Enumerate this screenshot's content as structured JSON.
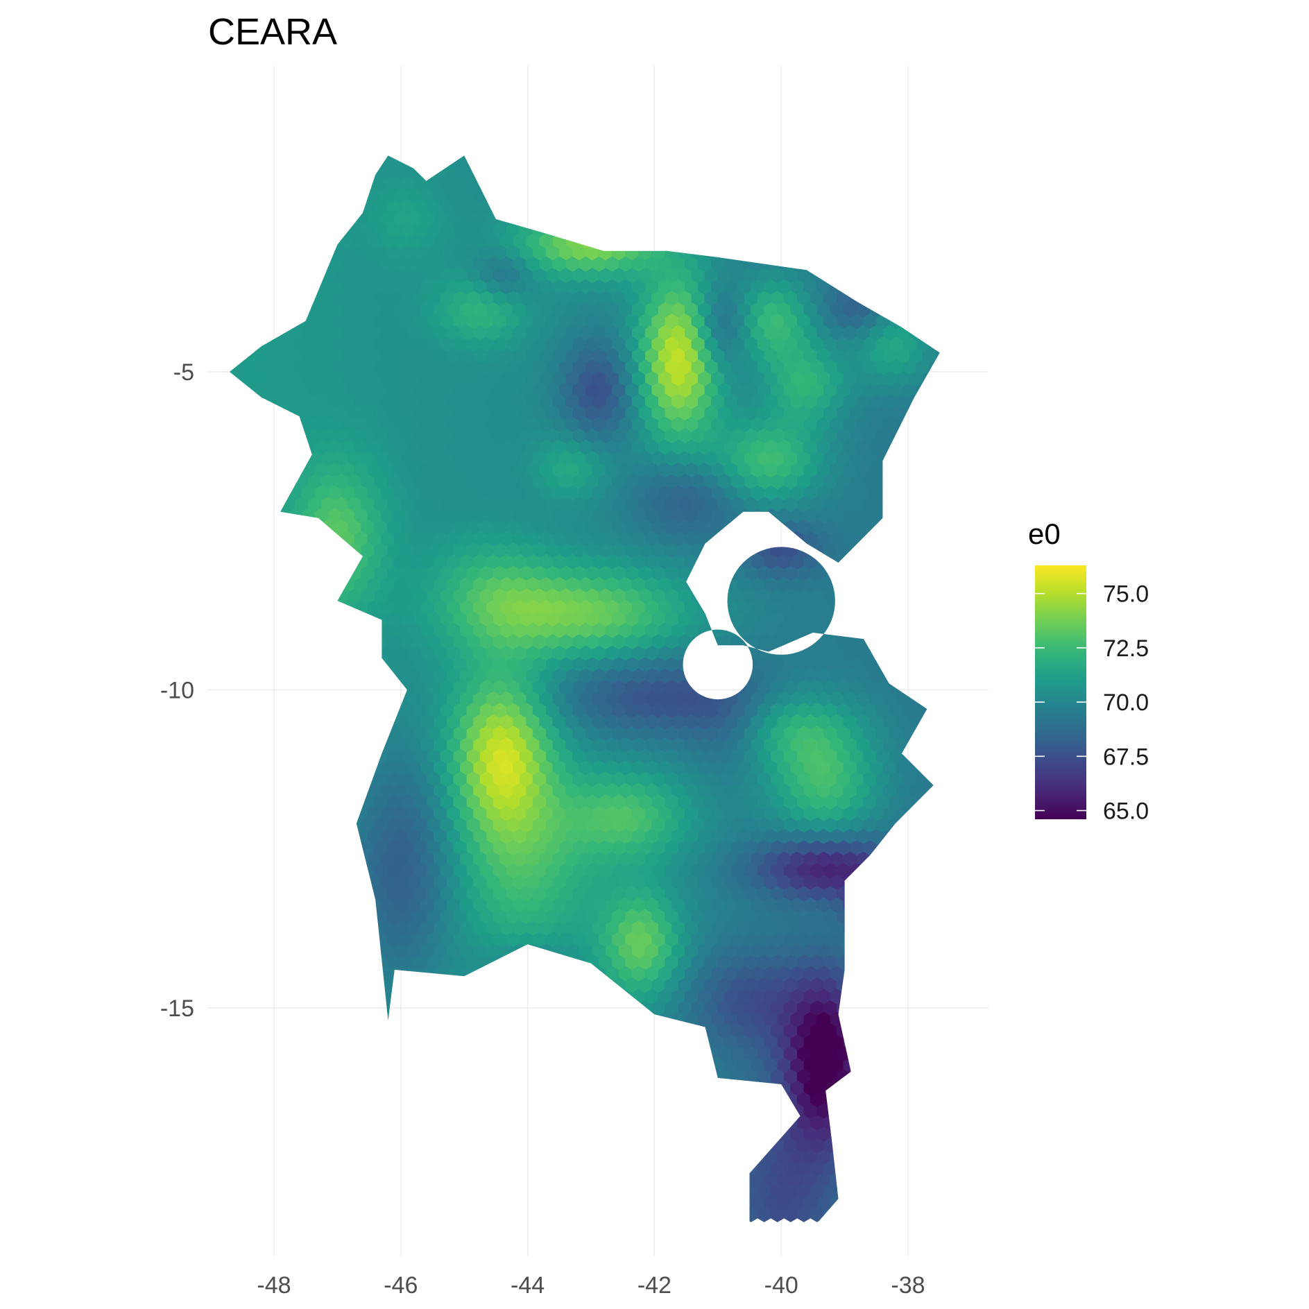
{
  "title": "CEARA",
  "axes": {
    "x_ticks": [
      {
        "value": -48,
        "label": "-48"
      },
      {
        "value": -46,
        "label": "-46"
      },
      {
        "value": -44,
        "label": "-44"
      },
      {
        "value": -42,
        "label": "-42"
      },
      {
        "value": -40,
        "label": "-40"
      },
      {
        "value": -38,
        "label": "-38"
      }
    ],
    "y_ticks": [
      {
        "value": -5,
        "label": "-5"
      },
      {
        "value": -10,
        "label": "-10"
      },
      {
        "value": -15,
        "label": "-15"
      }
    ],
    "xlim": [
      -49.0,
      -37.3
    ],
    "ylim": [
      -19.7,
      0.5
    ]
  },
  "legend": {
    "title": "e0",
    "min": 64.6,
    "max": 76.3,
    "breaks": [
      {
        "value": 75.0,
        "label": "75.0"
      },
      {
        "value": 72.5,
        "label": "72.5"
      },
      {
        "value": 70.0,
        "label": "70.0"
      },
      {
        "value": 67.5,
        "label": "67.5"
      },
      {
        "value": 65.0,
        "label": "65.0"
      }
    ],
    "palette": "viridis"
  },
  "chart_data": {
    "type": "heatmap",
    "title": "CEARA",
    "xlabel": "",
    "ylabel": "",
    "variable": "e0",
    "value_range": [
      64.6,
      76.3
    ],
    "colorscale": [
      "#440154",
      "#482878",
      "#3e4989",
      "#31688e",
      "#26828e",
      "#1f9e89",
      "#35b779",
      "#6ece58",
      "#b5de2b",
      "#fde725"
    ],
    "grid": true,
    "legend_position": "right",
    "region_outline": [
      [
        -46.2,
        -1.6
      ],
      [
        -45.8,
        -1.8
      ],
      [
        -45.6,
        -2.0
      ],
      [
        -45.0,
        -1.6
      ],
      [
        -44.5,
        -2.6
      ],
      [
        -43.8,
        -2.8
      ],
      [
        -42.8,
        -3.1
      ],
      [
        -41.8,
        -3.1
      ],
      [
        -41.0,
        -3.2
      ],
      [
        -39.6,
        -3.4
      ],
      [
        -38.8,
        -3.9
      ],
      [
        -38.1,
        -4.3
      ],
      [
        -37.5,
        -4.7
      ],
      [
        -37.9,
        -5.4
      ],
      [
        -38.4,
        -6.4
      ],
      [
        -38.4,
        -7.3
      ],
      [
        -39.1,
        -8.0
      ],
      [
        -39.6,
        -7.7
      ],
      [
        -40.2,
        -7.2
      ],
      [
        -40.6,
        -7.2
      ],
      [
        -41.2,
        -7.7
      ],
      [
        -41.5,
        -8.3
      ],
      [
        -41.2,
        -8.8
      ],
      [
        -41.0,
        -9.3
      ],
      [
        -40.6,
        -9.3
      ],
      [
        -40.2,
        -9.4
      ],
      [
        -39.5,
        -9.1
      ],
      [
        -38.7,
        -9.2
      ],
      [
        -38.3,
        -9.9
      ],
      [
        -37.7,
        -10.3
      ],
      [
        -38.1,
        -11.0
      ],
      [
        -37.6,
        -11.5
      ],
      [
        -38.2,
        -12.1
      ],
      [
        -38.6,
        -12.6
      ],
      [
        -39.0,
        -13.0
      ],
      [
        -39.0,
        -14.4
      ],
      [
        -39.1,
        -15.1
      ],
      [
        -38.9,
        -16.0
      ],
      [
        -39.3,
        -16.3
      ],
      [
        -39.2,
        -17.1
      ],
      [
        -39.1,
        -18.0
      ],
      [
        -39.8,
        -18.8
      ],
      [
        -40.5,
        -18.4
      ],
      [
        -40.5,
        -17.6
      ],
      [
        -39.7,
        -16.7
      ],
      [
        -40.0,
        -16.2
      ],
      [
        -41.0,
        -16.1
      ],
      [
        -41.2,
        -15.3
      ],
      [
        -42.0,
        -15.1
      ],
      [
        -43.0,
        -14.3
      ],
      [
        -44.0,
        -14.0
      ],
      [
        -45.0,
        -14.5
      ],
      [
        -46.1,
        -14.4
      ],
      [
        -46.2,
        -15.2
      ],
      [
        -46.4,
        -13.3
      ],
      [
        -46.7,
        -12.1
      ],
      [
        -46.3,
        -11.0
      ],
      [
        -45.9,
        -10.0
      ],
      [
        -46.3,
        -9.5
      ],
      [
        -46.3,
        -8.9
      ],
      [
        -47.0,
        -8.6
      ],
      [
        -46.6,
        -7.9
      ],
      [
        -47.3,
        -7.3
      ],
      [
        -47.9,
        -7.2
      ],
      [
        -47.4,
        -6.3
      ],
      [
        -47.6,
        -5.7
      ],
      [
        -48.2,
        -5.4
      ],
      [
        -48.7,
        -5.0
      ],
      [
        -48.2,
        -4.6
      ],
      [
        -47.5,
        -4.2
      ],
      [
        -47.0,
        -3.0
      ],
      [
        -46.6,
        -2.5
      ],
      [
        -46.4,
        -1.9
      ]
    ],
    "holes": [
      {
        "center": [
          -40.0,
          -8.6
        ],
        "radius": 0.85
      },
      {
        "center": [
          -41.0,
          -9.6
        ],
        "radius": 0.55
      }
    ],
    "base_value": 70.1,
    "hotspots": [
      {
        "lon": -41.6,
        "lat": -4.8,
        "amp": 5.5,
        "sx": 0.45,
        "sy": 0.9
      },
      {
        "lon": -43.0,
        "lat": -3.0,
        "amp": 4.0,
        "sx": 0.8,
        "sy": 0.35
      },
      {
        "lon": -43.0,
        "lat": -8.8,
        "amp": 3.5,
        "sx": 1.1,
        "sy": 0.5
      },
      {
        "lon": -44.4,
        "lat": -11.0,
        "amp": 4.8,
        "sx": 0.55,
        "sy": 0.9
      },
      {
        "lon": -40.2,
        "lat": -6.4,
        "amp": 3.0,
        "sx": 0.6,
        "sy": 0.45
      },
      {
        "lon": -39.6,
        "lat": -5.2,
        "amp": 2.6,
        "sx": 0.45,
        "sy": 0.45
      },
      {
        "lon": -40.1,
        "lat": -4.2,
        "amp": 2.8,
        "sx": 0.4,
        "sy": 0.45
      },
      {
        "lon": -38.2,
        "lat": -4.6,
        "amp": 2.2,
        "sx": 0.45,
        "sy": 0.45
      },
      {
        "lon": -47.0,
        "lat": -7.6,
        "amp": 2.6,
        "sx": 0.5,
        "sy": 0.8
      },
      {
        "lon": -39.3,
        "lat": -11.5,
        "amp": 3.0,
        "sx": 0.6,
        "sy": 0.6
      },
      {
        "lon": -39.9,
        "lat": -10.6,
        "amp": 2.4,
        "sx": 0.8,
        "sy": 0.45
      },
      {
        "lon": -42.2,
        "lat": -14.0,
        "amp": 3.5,
        "sx": 0.45,
        "sy": 0.6
      },
      {
        "lon": -42.4,
        "lat": -12.0,
        "amp": 2.8,
        "sx": 0.7,
        "sy": 0.5
      },
      {
        "lon": -44.0,
        "lat": -12.8,
        "amp": 2.3,
        "sx": 0.8,
        "sy": 1.1
      },
      {
        "lon": -44.7,
        "lat": -4.0,
        "amp": 2.0,
        "sx": 0.5,
        "sy": 0.4
      },
      {
        "lon": -43.3,
        "lat": -6.5,
        "amp": 1.6,
        "sx": 0.4,
        "sy": 0.35
      },
      {
        "lon": -44.5,
        "lat": -8.5,
        "amp": 2.0,
        "sx": 0.7,
        "sy": 0.6
      },
      {
        "lon": -45.9,
        "lat": -2.6,
        "amp": 0.8,
        "sx": 0.4,
        "sy": 0.4
      },
      {
        "lon": -42.9,
        "lat": -5.3,
        "amp": -2.6,
        "sx": 0.4,
        "sy": 0.55
      },
      {
        "lon": -44.4,
        "lat": -3.5,
        "amp": -1.8,
        "sx": 0.35,
        "sy": 0.3
      },
      {
        "lon": -41.5,
        "lat": -7.0,
        "amp": -1.8,
        "sx": 0.6,
        "sy": 0.45
      },
      {
        "lon": -40.0,
        "lat": -7.8,
        "amp": -2.2,
        "sx": 0.45,
        "sy": 0.3
      },
      {
        "lon": -41.0,
        "lat": -4.3,
        "amp": -2.2,
        "sx": 0.3,
        "sy": 0.45
      },
      {
        "lon": -38.8,
        "lat": -4.0,
        "amp": -1.5,
        "sx": 0.35,
        "sy": 0.3
      },
      {
        "lon": -42.0,
        "lat": -10.1,
        "amp": -2.4,
        "sx": 1.2,
        "sy": 0.45
      },
      {
        "lon": -46.0,
        "lat": -12.8,
        "amp": -2.5,
        "sx": 0.6,
        "sy": 1.3
      },
      {
        "lon": -40.8,
        "lat": -10.6,
        "amp": -1.5,
        "sx": 0.5,
        "sy": 0.5
      },
      {
        "lon": -39.3,
        "lat": -12.8,
        "amp": -4.0,
        "sx": 0.8,
        "sy": 0.35
      },
      {
        "lon": -38.4,
        "lat": -13.4,
        "amp": -6.0,
        "sx": 0.3,
        "sy": 0.3
      },
      {
        "lon": -39.3,
        "lat": -15.8,
        "amp": -5.5,
        "sx": 0.45,
        "sy": 0.9
      },
      {
        "lon": -40.5,
        "lat": -14.9,
        "amp": -2.2,
        "sx": 0.7,
        "sy": 0.6
      },
      {
        "lon": -40.0,
        "lat": -17.9,
        "amp": -2.3,
        "sx": 0.7,
        "sy": 1.2
      },
      {
        "lon": -44.0,
        "lat": -14.3,
        "amp": -1.0,
        "sx": 0.5,
        "sy": 0.3
      }
    ]
  }
}
